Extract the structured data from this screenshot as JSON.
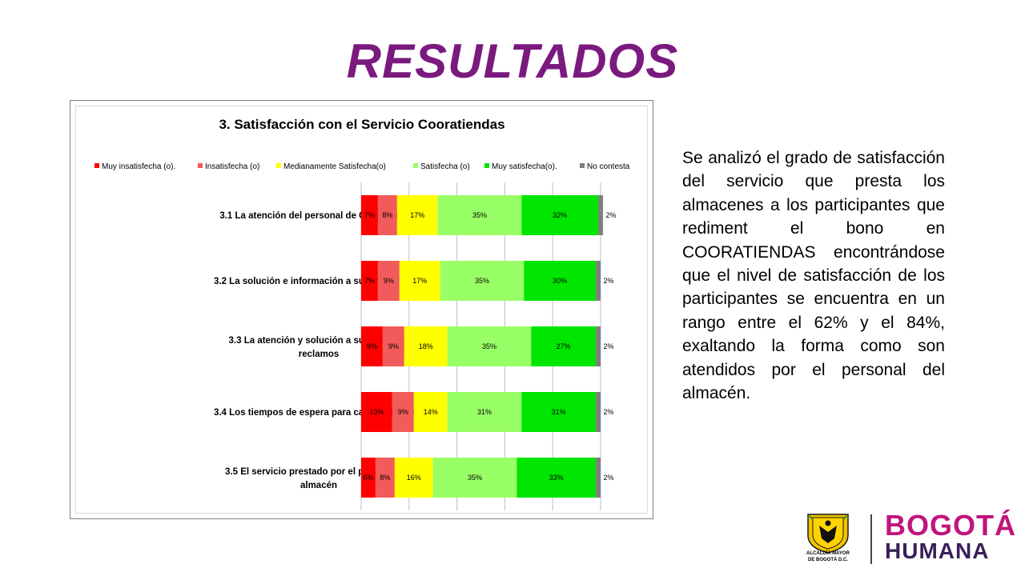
{
  "slide": {
    "title": "RESULTADOS",
    "description": "Se analizó el grado de satisfacción del servicio que presta los almacenes a los participantes que rediment el bono en COORATIENDAS encontrándose que el nivel de satisfacción de los participantes se encuentra en un rango entre el 62% y el 84%, exaltando la forma como son atendidos por el personal del almacén."
  },
  "logo": {
    "seal_line1": "ALCALDÍA MAYOR",
    "seal_line2": "DE BOGOTÁ D.C.",
    "brand_line1": "BOGOTÁ",
    "brand_line2": "HUMANA"
  },
  "chart_data": {
    "type": "bar",
    "orientation": "horizontal",
    "stacked": true,
    "title": "3. Satisfacción con el Servicio Cooratiendas",
    "legend_position": "top",
    "grid": true,
    "xlim": [
      0,
      100
    ],
    "categories": [
      [
        "3.1 La atención del personal de Cooratiendas"
      ],
      [
        "3.2 La solución e información a sus inquietudes"
      ],
      [
        "3.3 La atención y solución a sus quejas y",
        "reclamos"
      ],
      [
        "3.4 Los tiempos de espera para camjear el bono"
      ],
      [
        "3.5 El servicio prestado por el personal del",
        "almacén"
      ]
    ],
    "series": [
      {
        "name": "Muy insatisfecha (o).",
        "color": "#ff0000",
        "values": [
          7,
          7,
          9,
          13,
          6
        ]
      },
      {
        "name": "Insatisfecha (o)",
        "color": "#f25b5b",
        "values": [
          8,
          9,
          9,
          9,
          8
        ]
      },
      {
        "name": "Medianamente Satisfecha(o)",
        "color": "#ffff00",
        "values": [
          17,
          17,
          18,
          14,
          16
        ]
      },
      {
        "name": "Satisfecha (o)",
        "color": "#99ff66",
        "values": [
          35,
          35,
          35,
          31,
          35
        ]
      },
      {
        "name": "Muy satisfecha(o).",
        "color": "#00e600",
        "values": [
          32,
          30,
          27,
          31,
          33
        ]
      },
      {
        "name": "No contesta",
        "color": "#7f7f7f",
        "values": [
          2,
          2,
          2,
          2,
          2
        ]
      }
    ],
    "value_suffix": "%"
  }
}
